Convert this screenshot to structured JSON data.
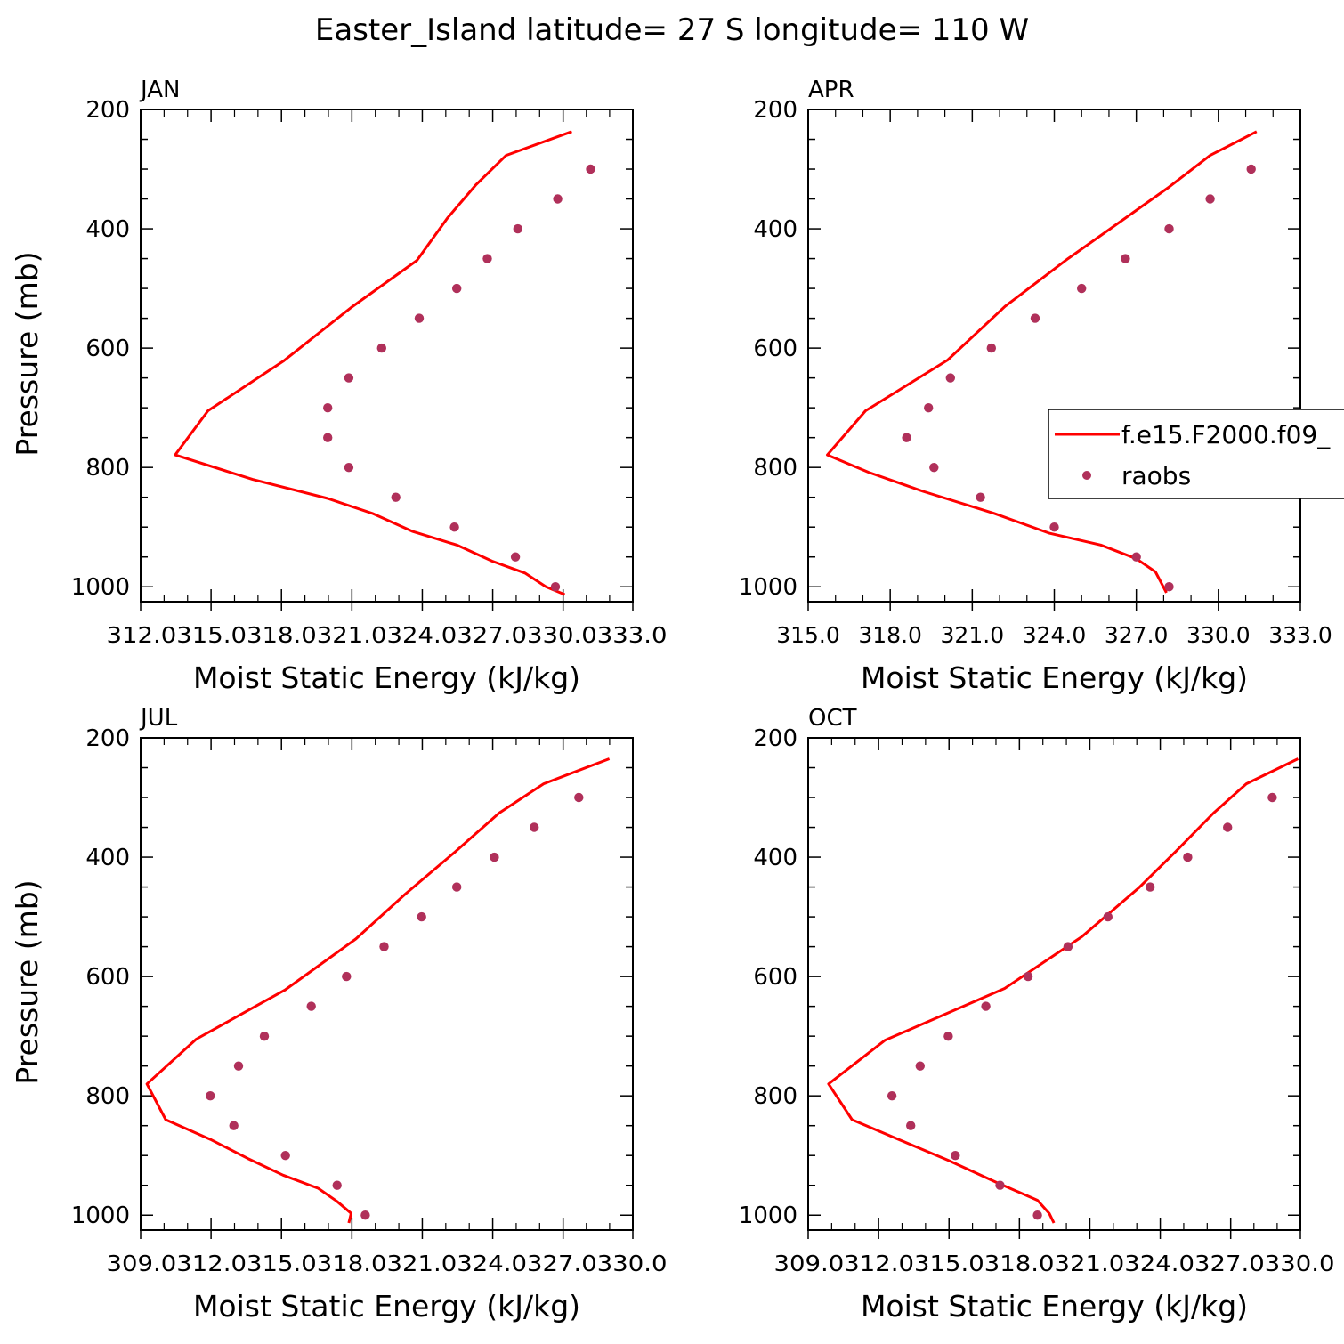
{
  "figure": {
    "title": "Easter_Island  latitude= 27 S longitude= 110 W"
  },
  "legend": {
    "model_label": "f.e15.F2000.f09_",
    "obs_label": "raobs",
    "model_color": "#ff0000",
    "obs_color": "#b0305a"
  },
  "chart_data": [
    {
      "type": "line",
      "title": "JAN",
      "xlabel": "Moist Static Energy (kJ/kg)",
      "ylabel": "Pressure (mb)",
      "xlim": [
        312.03,
        333.0
      ],
      "ylim": [
        1025,
        200
      ],
      "y_inverted": true,
      "xticks": [
        312.03,
        315.03,
        318.03,
        321.03,
        324.03,
        327.03,
        330.03,
        333.0
      ],
      "xtick_labels": [
        "312.03",
        "15.03",
        "18.03",
        "21.03",
        "24.03",
        "27.03",
        "30.03",
        "33.0"
      ],
      "yticks": [
        200,
        400,
        600,
        800,
        1000
      ],
      "ytick_labels": [
        "200",
        "400",
        "600",
        "800",
        "1000"
      ],
      "series": [
        {
          "kind": "line",
          "x": [
            330.4,
            327.6,
            326.3,
            325.1,
            323.8,
            321.0,
            318.1,
            314.9,
            313.5,
            316.8,
            320.0,
            321.9,
            323.6,
            325.5,
            327.0,
            328.4,
            329.3,
            330.1
          ],
          "y": [
            237,
            277,
            327,
            382,
            453,
            532,
            622,
            705,
            779,
            820,
            852,
            877,
            907,
            930,
            957,
            977,
            1000,
            1013
          ]
        },
        {
          "kind": "scatter",
          "x": [
            331.2,
            329.8,
            328.1,
            326.8,
            325.5,
            323.9,
            322.3,
            320.9,
            320.0,
            320.0,
            320.9,
            322.9,
            325.4,
            328.0,
            329.7
          ],
          "y": [
            300,
            350,
            400,
            450,
            500,
            550,
            600,
            650,
            700,
            750,
            800,
            850,
            900,
            950,
            1000
          ]
        }
      ]
    },
    {
      "type": "line",
      "title": "APR",
      "xlabel": "Moist Static Energy (kJ/kg)",
      "ylabel": "",
      "xlim": [
        315.0,
        333.0
      ],
      "ylim": [
        1025,
        200
      ],
      "y_inverted": true,
      "xticks": [
        315.0,
        318.0,
        321.0,
        324.0,
        327.0,
        330.0,
        333.0
      ],
      "xtick_labels": [
        "315.0",
        "318.0",
        "321.0",
        "324.0",
        "327.0",
        "330.0",
        "333.0"
      ],
      "yticks": [
        200,
        400,
        600,
        800,
        1000
      ],
      "ytick_labels": [
        "200",
        "400",
        "600",
        "800",
        "1000"
      ],
      "series": [
        {
          "name": "f.e15.F2000.f09_",
          "kind": "line",
          "x": [
            331.4,
            329.7,
            328.2,
            326.6,
            324.5,
            322.2,
            320.1,
            317.1,
            315.7,
            317.2,
            319.2,
            321.8,
            323.8,
            325.7,
            327.0,
            327.7,
            328.1
          ],
          "y": [
            237,
            277,
            330,
            382,
            450,
            530,
            620,
            705,
            779,
            808,
            840,
            877,
            910,
            930,
            953,
            975,
            1010
          ]
        },
        {
          "name": "raobs",
          "kind": "scatter",
          "x": [
            331.2,
            329.7,
            328.2,
            326.6,
            325.0,
            323.3,
            321.7,
            320.2,
            319.4,
            318.6,
            319.6,
            321.3,
            324.0,
            327.0,
            328.2
          ],
          "y": [
            300,
            350,
            400,
            450,
            500,
            550,
            600,
            650,
            700,
            750,
            800,
            850,
            900,
            950,
            1000
          ]
        }
      ]
    },
    {
      "type": "line",
      "title": "JUL",
      "xlabel": "Moist Static Energy (kJ/kg)",
      "ylabel": "Pressure (mb)",
      "xlim": [
        309.03,
        330.0
      ],
      "ylim": [
        1025,
        200
      ],
      "y_inverted": true,
      "xticks": [
        309.03,
        312.03,
        315.03,
        318.03,
        321.03,
        324.03,
        327.03,
        330.0
      ],
      "xtick_labels": [
        "309.03",
        "12.03",
        "15.03",
        "18.03",
        "21.03",
        "24.03",
        "27.03",
        "30.0"
      ],
      "yticks": [
        200,
        400,
        600,
        800,
        1000
      ],
      "ytick_labels": [
        "200",
        "400",
        "600",
        "800",
        "1000"
      ],
      "series": [
        {
          "kind": "line",
          "x": [
            329.0,
            326.2,
            324.3,
            322.4,
            320.3,
            318.2,
            315.2,
            311.4,
            309.3,
            310.1,
            312.0,
            313.6,
            315.1,
            316.6,
            317.4,
            318.0,
            317.9
          ],
          "y": [
            235,
            277,
            326,
            392,
            462,
            537,
            622,
            705,
            780,
            840,
            873,
            905,
            933,
            955,
            977,
            997,
            1013
          ]
        },
        {
          "kind": "scatter",
          "x": [
            327.7,
            325.8,
            324.1,
            322.5,
            321.0,
            319.4,
            317.8,
            316.3,
            314.3,
            313.2,
            312.0,
            313.0,
            315.2,
            317.4,
            318.6
          ],
          "y": [
            300,
            350,
            400,
            450,
            500,
            550,
            600,
            650,
            700,
            750,
            800,
            850,
            900,
            950,
            1000
          ]
        }
      ]
    },
    {
      "type": "line",
      "title": "OCT",
      "xlabel": "Moist Static Energy (kJ/kg)",
      "ylabel": "",
      "xlim": [
        309.03,
        330.0
      ],
      "ylim": [
        1025,
        200
      ],
      "y_inverted": true,
      "xticks": [
        309.03,
        312.03,
        315.03,
        318.03,
        321.03,
        324.03,
        327.03,
        330.0
      ],
      "xtick_labels": [
        "309.03",
        "12.03",
        "15.03",
        "18.03",
        "21.03",
        "24.03",
        "27.03",
        "30.0"
      ],
      "yticks": [
        200,
        400,
        600,
        800,
        1000
      ],
      "ytick_labels": [
        "200",
        "400",
        "600",
        "800",
        "1000"
      ],
      "series": [
        {
          "kind": "line",
          "x": [
            329.9,
            327.7,
            326.3,
            324.7,
            323.1,
            320.7,
            317.4,
            312.3,
            309.9,
            310.9,
            313.0,
            315.0,
            317.1,
            318.8,
            319.3,
            319.5
          ],
          "y": [
            235,
            277,
            326,
            390,
            452,
            533,
            620,
            707,
            780,
            840,
            875,
            908,
            946,
            975,
            997,
            1013
          ]
        },
        {
          "kind": "scatter",
          "x": [
            328.8,
            326.9,
            325.2,
            323.6,
            321.8,
            320.1,
            318.4,
            316.6,
            315.0,
            313.8,
            312.6,
            313.4,
            315.3,
            317.2,
            318.8
          ],
          "y": [
            300,
            350,
            400,
            450,
            500,
            550,
            600,
            650,
            700,
            750,
            800,
            850,
            900,
            950,
            1000
          ]
        }
      ]
    }
  ]
}
